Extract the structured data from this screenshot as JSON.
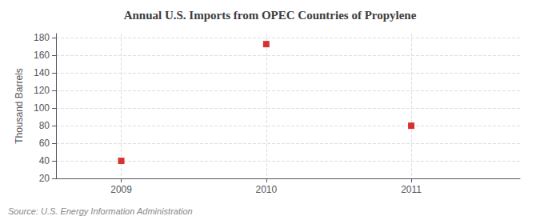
{
  "chart_data": {
    "type": "scatter",
    "title": "Annual U.S. Imports from OPEC Countries of Propylene",
    "ylabel": "Thousand Barrels",
    "source": "Source: U.S. Energy Information Administration",
    "x": [
      2009,
      2010,
      2011
    ],
    "values": [
      40,
      173,
      80
    ],
    "color": "#cc0000",
    "marker": "square",
    "xlim": [
      2008.55,
      2011.75
    ],
    "xticks": [
      2009,
      2010,
      2011
    ],
    "ylim": [
      20,
      185
    ],
    "yticks": [
      20,
      40,
      60,
      80,
      100,
      120,
      140,
      160,
      180
    ],
    "grid": true
  }
}
